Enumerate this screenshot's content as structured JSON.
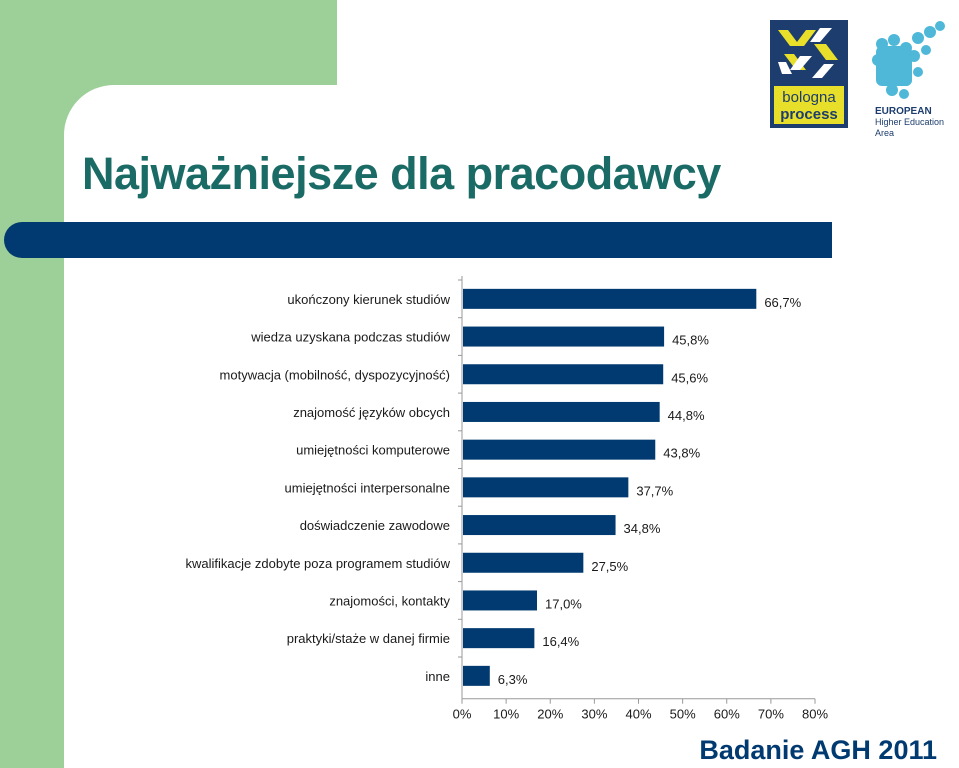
{
  "slide": {
    "title": "Najważniejsze dla pracodawcy",
    "source": "Badanie AGH 2011",
    "colors": {
      "title": "#1a6b66",
      "bar": "#003a70",
      "accent_green": "#9dcf98"
    }
  },
  "logos": {
    "bologna": {
      "line1": "bologna",
      "line2": "process"
    },
    "ehea": {
      "line1": "EUROPEAN",
      "line2": "Higher Education Area"
    }
  },
  "chart_data": {
    "type": "bar",
    "orientation": "horizontal",
    "categories": [
      "ukończony kierunek studiów",
      "wiedza uzyskana podczas studiów",
      "motywacja (mobilność, dyspozycyjność)",
      "znajomość języków obcych",
      "umiejętności komputerowe",
      "umiejętności interpersonalne",
      "doświadczenie zawodowe",
      "kwalifikacje zdobyte poza programem studiów",
      "znajomości, kontakty",
      "praktyki/staże w danej firmie",
      "inne"
    ],
    "values": [
      66.7,
      45.8,
      45.6,
      44.8,
      43.8,
      37.7,
      34.8,
      27.5,
      17.0,
      16.4,
      6.3
    ],
    "value_labels": [
      "66,7%",
      "45,8%",
      "45,6%",
      "44,8%",
      "43,8%",
      "37,7%",
      "34,8%",
      "27,5%",
      "17,0%",
      "16,4%",
      "6,3%"
    ],
    "xlim": [
      0,
      80
    ],
    "x_ticks": [
      "0%",
      "10%",
      "20%",
      "30%",
      "40%",
      "50%",
      "60%",
      "70%",
      "80%"
    ],
    "bar_color": "#003a70",
    "grid": false
  }
}
